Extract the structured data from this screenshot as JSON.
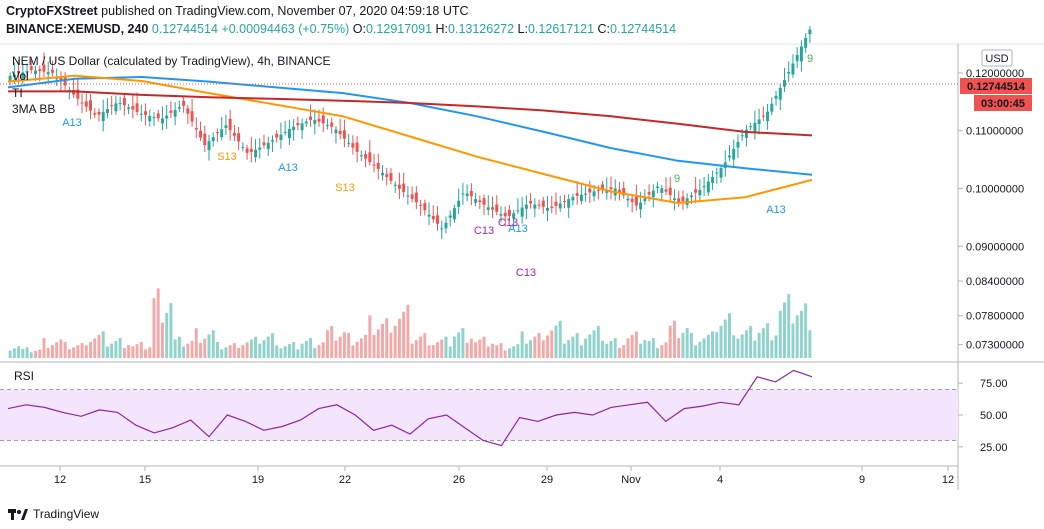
{
  "header": {
    "publisher": "CryptoFXStreet",
    "published_text": " published on TradingView.com, November 07, 2020 04:59:18 UTC",
    "symbol": "BINANCE:XEMUSD, 240",
    "last_price": "0.12744514",
    "change": "+0.00094463 (+0.75%)",
    "open_label": "O:",
    "open": "0.12917091",
    "high_label": "H:",
    "high": "0.13126272",
    "low_label": "L:",
    "low": "0.12617121",
    "close_label": "C:",
    "close": "0.12744514"
  },
  "legend": {
    "title": "NEM / US Dollar (calculated by TradingView), 4h, BINANCE",
    "vol": "Vol",
    "ti": "TI",
    "bb": "3MA BB"
  },
  "price_axis": {
    "currency": "USD",
    "current_price": "0.12744514",
    "countdown": "03:00:45",
    "ticks": [
      "0.12000000",
      "0.11000000",
      "0.10000000",
      "0.09000000",
      "0.08400000",
      "0.07800000",
      "0.07300000"
    ]
  },
  "rsi_pane": {
    "label": "RSI",
    "ticks": [
      "75.00",
      "50.00",
      "25.00"
    ]
  },
  "time_axis": {
    "labels": [
      "12",
      "15",
      "19",
      "22",
      "26",
      "29",
      "Nov",
      "4",
      "9",
      "12"
    ]
  },
  "chart_data": {
    "type": "candlestick",
    "title": "NEM / US Dollar (calculated by TradingView), 4h, BINANCE",
    "price_ylim": [
      0.07,
      0.125
    ],
    "price_ticks": [
      0.12,
      0.11,
      0.1,
      0.09,
      0.084,
      0.078,
      0.073
    ],
    "ma_series": [
      {
        "color": "#2196f3",
        "values": [
          0.1175,
          0.119,
          0.1193,
          0.1185,
          0.1175,
          0.1165,
          0.1148,
          0.1125,
          0.1098,
          0.107,
          0.1048,
          0.1035,
          0.1024
        ]
      },
      {
        "color": "#ff9800",
        "values": [
          0.1185,
          0.1195,
          0.1186,
          0.1165,
          0.1145,
          0.1125,
          0.109,
          0.1055,
          0.1025,
          0.0995,
          0.0975,
          0.0985,
          0.1015
        ]
      },
      {
        "color": "#c62828",
        "values": [
          0.1168,
          0.1168,
          0.1162,
          0.1158,
          0.1155,
          0.1152,
          0.1148,
          0.1142,
          0.1135,
          0.1125,
          0.1112,
          0.1098,
          0.1092
        ]
      }
    ],
    "price_path": [
      0.1195,
      0.1205,
      0.12,
      0.116,
      0.1125,
      0.115,
      0.113,
      0.112,
      0.1145,
      0.1075,
      0.111,
      0.106,
      0.108,
      0.1105,
      0.112,
      0.1105,
      0.1065,
      0.1035,
      0.1,
      0.097,
      0.093,
      0.0995,
      0.097,
      0.095,
      0.0975,
      0.0965,
      0.0985,
      0.0995,
      0.1,
      0.097,
      0.1005,
      0.0975,
      0.1,
      0.104,
      0.11,
      0.113,
      0.12,
      0.1275
    ],
    "volume_path": [
      3,
      2,
      4,
      3,
      5,
      4,
      3,
      14,
      4,
      6,
      3,
      4,
      5,
      3,
      4,
      6,
      5,
      8,
      10,
      5,
      4,
      6,
      4,
      3,
      5,
      7,
      5,
      6,
      4,
      5,
      4,
      7,
      5,
      9,
      6,
      7,
      12,
      11
    ],
    "rsi": {
      "ylim": [
        10,
        90
      ],
      "band": [
        30,
        70
      ],
      "ticks": [
        75,
        50,
        25
      ],
      "values": [
        55,
        58,
        56,
        52,
        49,
        54,
        52,
        42,
        36,
        40,
        46,
        33,
        50,
        45,
        38,
        41,
        46,
        55,
        58,
        50,
        38,
        42,
        35,
        47,
        50,
        40,
        30,
        26,
        48,
        45,
        50,
        52,
        50,
        56,
        58,
        60,
        45,
        55,
        57,
        60,
        58,
        80,
        76,
        85,
        80
      ]
    },
    "td_labels": [
      {
        "text": "A13",
        "color": "#2196f3"
      },
      {
        "text": "S13",
        "color": "#ff9800"
      },
      {
        "text": "A13",
        "color": "#2196f3"
      },
      {
        "text": "S13",
        "color": "#ff9800"
      },
      {
        "text": "C13",
        "color": "#9c27b0"
      },
      {
        "text": "C13",
        "color": "#9c27b0"
      },
      {
        "text": "A13",
        "color": "#2196f3"
      },
      {
        "text": "C13",
        "color": "#9c27b0"
      },
      {
        "text": "A13",
        "color": "#2196f3"
      },
      {
        "text": "9",
        "color": "#4caf50"
      }
    ]
  },
  "footer": {
    "brand": "TradingView"
  }
}
